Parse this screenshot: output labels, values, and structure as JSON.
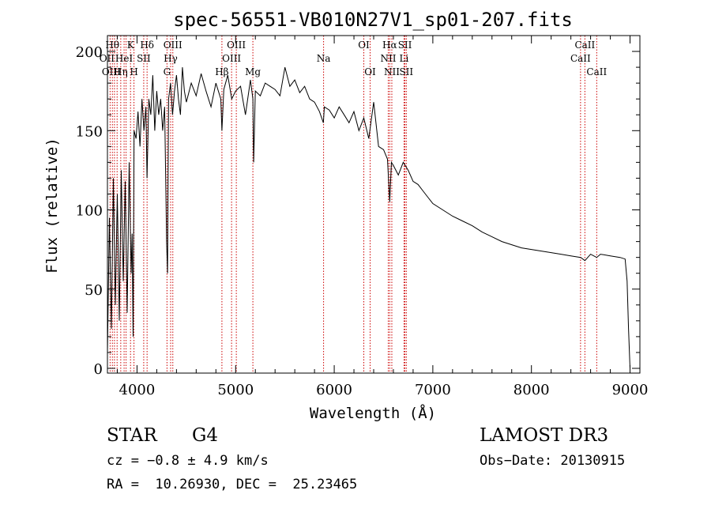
{
  "chart_data": {
    "type": "line",
    "title": "spec-56551-VB010N27V1_sp01-207.fits",
    "xlabel": "Wavelength (Å)",
    "ylabel": "Flux (relative)",
    "xlim": [
      3700,
      9100
    ],
    "ylim": [
      -3,
      210
    ],
    "x_ticks": [
      4000,
      5000,
      6000,
      7000,
      8000,
      9000
    ],
    "y_ticks": [
      0,
      50,
      100,
      150,
      200
    ],
    "x_minor_step": 200,
    "y_minor_step": 10,
    "series": [
      {
        "name": "flux",
        "color": "#000000",
        "x": [
          3700,
          3720,
          3740,
          3760,
          3780,
          3800,
          3820,
          3840,
          3860,
          3880,
          3900,
          3920,
          3940,
          3950,
          3960,
          3970,
          3990,
          4010,
          4030,
          4050,
          4070,
          4090,
          4101,
          4120,
          4140,
          4160,
          4180,
          4200,
          4220,
          4240,
          4260,
          4280,
          4300,
          4310,
          4320,
          4340,
          4360,
          4380,
          4400,
          4420,
          4440,
          4460,
          4480,
          4500,
          4550,
          4600,
          4650,
          4700,
          4750,
          4800,
          4850,
          4861,
          4880,
          4920,
          4960,
          5000,
          5050,
          5100,
          5150,
          5175,
          5183,
          5200,
          5250,
          5300,
          5350,
          5400,
          5450,
          5500,
          5550,
          5600,
          5650,
          5700,
          5750,
          5800,
          5850,
          5890,
          5900,
          5950,
          6000,
          6050,
          6100,
          6150,
          6200,
          6250,
          6300,
          6350,
          6400,
          6450,
          6500,
          6540,
          6563,
          6580,
          6600,
          6650,
          6700,
          6750,
          6800,
          6850,
          6900,
          6950,
          7000,
          7100,
          7200,
          7300,
          7400,
          7500,
          7600,
          7700,
          7800,
          7900,
          8000,
          8100,
          8200,
          8300,
          8400,
          8500,
          8542,
          8600,
          8662,
          8700,
          8800,
          8900,
          8950,
          8970,
          8985,
          9000
        ],
        "y": [
          10,
          95,
          25,
          120,
          40,
          110,
          30,
          125,
          55,
          118,
          35,
          130,
          60,
          85,
          20,
          150,
          145,
          162,
          140,
          170,
          150,
          165,
          120,
          170,
          160,
          185,
          150,
          175,
          160,
          170,
          150,
          165,
          80,
          60,
          170,
          180,
          160,
          175,
          185,
          170,
          160,
          190,
          175,
          168,
          180,
          172,
          186,
          175,
          165,
          180,
          170,
          150,
          176,
          185,
          170,
          175,
          178,
          160,
          182,
          170,
          130,
          175,
          172,
          180,
          178,
          176,
          172,
          190,
          178,
          182,
          174,
          178,
          170,
          168,
          162,
          155,
          165,
          163,
          158,
          165,
          160,
          155,
          162,
          150,
          158,
          145,
          168,
          140,
          138,
          132,
          105,
          130,
          128,
          122,
          130,
          125,
          118,
          116,
          112,
          108,
          104,
          100,
          96,
          93,
          90,
          86,
          83,
          80,
          78,
          76,
          75,
          74,
          73,
          72,
          71,
          70,
          68,
          72,
          70,
          72,
          71,
          70,
          69,
          55,
          25,
          0
        ]
      }
    ],
    "lines": [
      {
        "wl": 3727,
        "label": "OII",
        "row": 1,
        "dx": -4
      },
      {
        "wl": 3750,
        "label": "Hθ",
        "row": 0,
        "dx": 0
      },
      {
        "wl": 3771,
        "label": "OIII",
        "row": 2,
        "dx": -4
      },
      {
        "wl": 3798,
        "label": "",
        "row": 0,
        "dx": 0
      },
      {
        "wl": 3835,
        "label": "Hη",
        "row": 2,
        "dx": 0
      },
      {
        "wl": 3869,
        "label": "HeI",
        "row": 1,
        "dx": 0
      },
      {
        "wl": 3889,
        "label": "",
        "row": 0,
        "dx": 0
      },
      {
        "wl": 3934,
        "label": "K",
        "row": 0,
        "dx": 0
      },
      {
        "wl": 3969,
        "label": "H",
        "row": 2,
        "dx": 0
      },
      {
        "wl": 4068,
        "label": "SII",
        "row": 1,
        "dx": 0
      },
      {
        "wl": 4102,
        "label": "Hδ",
        "row": 0,
        "dx": 0
      },
      {
        "wl": 4304,
        "label": "G",
        "row": 2,
        "dx": 0
      },
      {
        "wl": 4341,
        "label": "Hγ",
        "row": 1,
        "dx": 0
      },
      {
        "wl": 4363,
        "label": "OIII",
        "row": 0,
        "dx": 0
      },
      {
        "wl": 4861,
        "label": "Hβ",
        "row": 2,
        "dx": 0
      },
      {
        "wl": 4959,
        "label": "OIII",
        "row": 1,
        "dx": 0
      },
      {
        "wl": 5007,
        "label": "OIII",
        "row": 0,
        "dx": 0
      },
      {
        "wl": 5175,
        "label": "Mg",
        "row": 2,
        "dx": 0
      },
      {
        "wl": 5892,
        "label": "Na",
        "row": 1,
        "dx": 0
      },
      {
        "wl": 6300,
        "label": "OI",
        "row": 0,
        "dx": 0
      },
      {
        "wl": 6364,
        "label": "OI",
        "row": 2,
        "dx": 0
      },
      {
        "wl": 6548,
        "label": "NII",
        "row": 1,
        "dx": 0
      },
      {
        "wl": 6563,
        "label": "Hα",
        "row": 0,
        "dx": 0
      },
      {
        "wl": 6584,
        "label": "NII",
        "row": 2,
        "dx": 0
      },
      {
        "wl": 6708,
        "label": "Li",
        "row": 1,
        "dx": 0
      },
      {
        "wl": 6717,
        "label": "SII",
        "row": 0,
        "dx": 0
      },
      {
        "wl": 6731,
        "label": "SII",
        "row": 2,
        "dx": 0
      },
      {
        "wl": 8498,
        "label": "CaII",
        "row": 1,
        "dx": 0
      },
      {
        "wl": 8542,
        "label": "CaII",
        "row": 0,
        "dx": 0
      },
      {
        "wl": 8662,
        "label": "CaII",
        "row": 2,
        "dx": 0
      }
    ],
    "colors": {
      "line_marker": "#cc0000",
      "data": "#000000",
      "axes": "#000000"
    }
  },
  "info": {
    "class_label": "STAR",
    "subclass": "G4",
    "survey": "LAMOST DR3",
    "cz": "cz = −0.8 ± 4.9 km/s",
    "obs_date": "Obs−Date: 20130915",
    "coords": "RA =  10.26930, DEC =  25.23465"
  }
}
